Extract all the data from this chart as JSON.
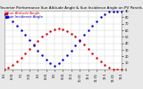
{
  "title": "Solar PV/Inverter Performance Sun Altitude Angle & Sun Incidence Angle on PV Panels",
  "bg_color": "#e8e8e8",
  "plot_bg": "#ffffff",
  "red_color": "#dd0000",
  "blue_color": "#0000cc",
  "ylim": [
    0,
    90
  ],
  "xlim": [
    0,
    420
  ],
  "xticks": [
    0,
    30,
    60,
    90,
    120,
    150,
    180,
    210,
    240,
    270,
    300,
    330,
    360,
    390,
    420
  ],
  "xtick_labels": [
    "6:1",
    "6:31",
    "7:1",
    "7:31",
    "8:1",
    "8:31",
    "9:1",
    "9:31",
    "10:1",
    "10:31",
    "11:1",
    "11:31",
    "12:1",
    "12:31",
    "13:1"
  ],
  "yticks": [
    0,
    10,
    20,
    30,
    40,
    50,
    60,
    70,
    80,
    90
  ],
  "sun_alt_x": [
    0,
    15,
    30,
    45,
    60,
    75,
    90,
    105,
    120,
    135,
    150,
    165,
    180,
    195,
    210,
    225,
    240,
    255,
    270,
    285,
    300,
    315,
    330,
    345,
    360,
    375,
    390,
    405,
    420
  ],
  "sun_alt_y": [
    0,
    3,
    7,
    12,
    18,
    24,
    31,
    38,
    44,
    50,
    55,
    59,
    62,
    63,
    62,
    59,
    55,
    50,
    44,
    38,
    31,
    24,
    18,
    12,
    7,
    3,
    0,
    0,
    0
  ],
  "incidence_x": [
    0,
    15,
    30,
    45,
    60,
    75,
    90,
    105,
    120,
    135,
    150,
    165,
    180,
    195,
    210,
    225,
    240,
    255,
    270,
    285,
    300,
    315,
    330,
    345,
    360,
    375,
    390,
    405,
    420
  ],
  "incidence_y": [
    85,
    80,
    74,
    67,
    60,
    53,
    45,
    37,
    29,
    22,
    15,
    9,
    5,
    9,
    15,
    22,
    29,
    37,
    45,
    53,
    60,
    67,
    74,
    80,
    85,
    88,
    89,
    89,
    89
  ],
  "legend_labels": [
    "Sun Altitude Angle",
    "Sun Incidence Angle"
  ],
  "title_fontsize": 3.0,
  "tick_fontsize": 2.5,
  "legend_fontsize": 2.8,
  "marker_size": 0.6,
  "grid_color": "#aaaaaa",
  "grid_style": "--",
  "grid_linewidth": 0.3,
  "grid_alpha": 0.8
}
